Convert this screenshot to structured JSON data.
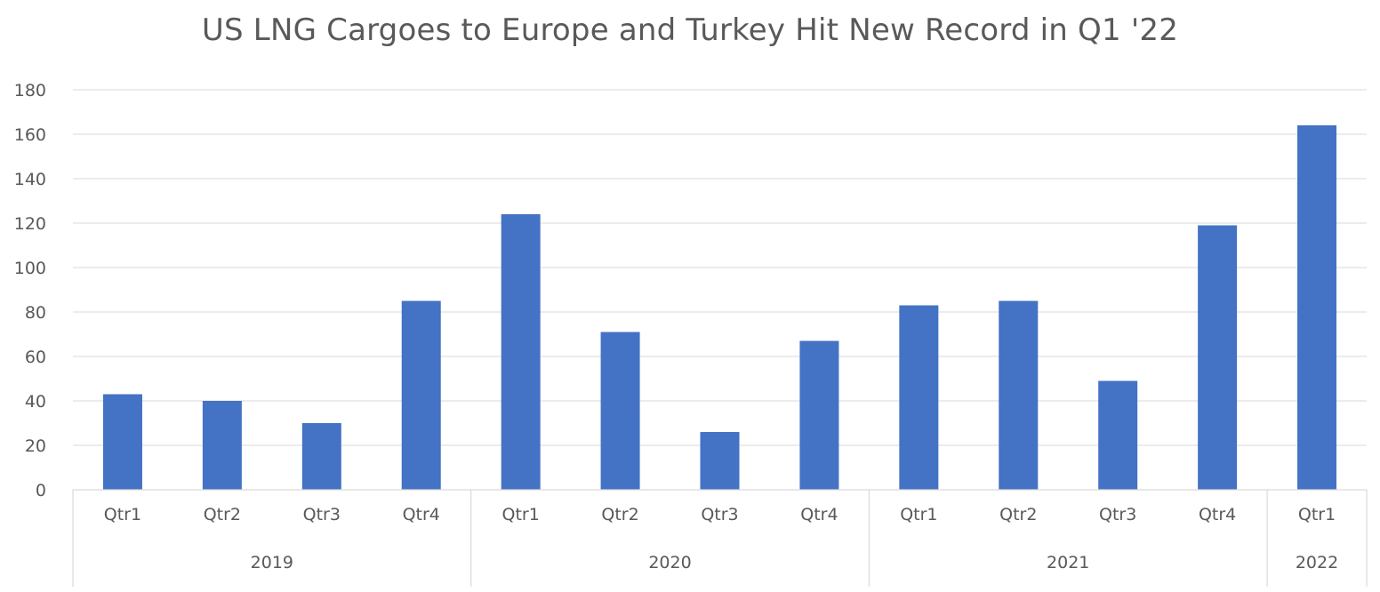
{
  "chart_data": {
    "type": "bar",
    "title": "US LNG Cargoes to Europe and Turkey Hit New Record in Q1 '22",
    "xlabel": "",
    "ylabel": "",
    "ylim": [
      0,
      180
    ],
    "yticks": [
      0,
      20,
      40,
      60,
      80,
      100,
      120,
      140,
      160,
      180
    ],
    "grid": true,
    "legend": "none",
    "bar_color": "#4472C4",
    "categories": [
      {
        "quarter": "Qtr1",
        "year": "2019"
      },
      {
        "quarter": "Qtr2",
        "year": "2019"
      },
      {
        "quarter": "Qtr3",
        "year": "2019"
      },
      {
        "quarter": "Qtr4",
        "year": "2019"
      },
      {
        "quarter": "Qtr1",
        "year": "2020"
      },
      {
        "quarter": "Qtr2",
        "year": "2020"
      },
      {
        "quarter": "Qtr3",
        "year": "2020"
      },
      {
        "quarter": "Qtr4",
        "year": "2020"
      },
      {
        "quarter": "Qtr1",
        "year": "2021"
      },
      {
        "quarter": "Qtr2",
        "year": "2021"
      },
      {
        "quarter": "Qtr3",
        "year": "2021"
      },
      {
        "quarter": "Qtr4",
        "year": "2021"
      },
      {
        "quarter": "Qtr1",
        "year": "2022"
      }
    ],
    "years": [
      "2019",
      "2020",
      "2021",
      "2022"
    ],
    "values": [
      43,
      40,
      30,
      85,
      124,
      71,
      26,
      67,
      83,
      85,
      49,
      119,
      164
    ]
  }
}
